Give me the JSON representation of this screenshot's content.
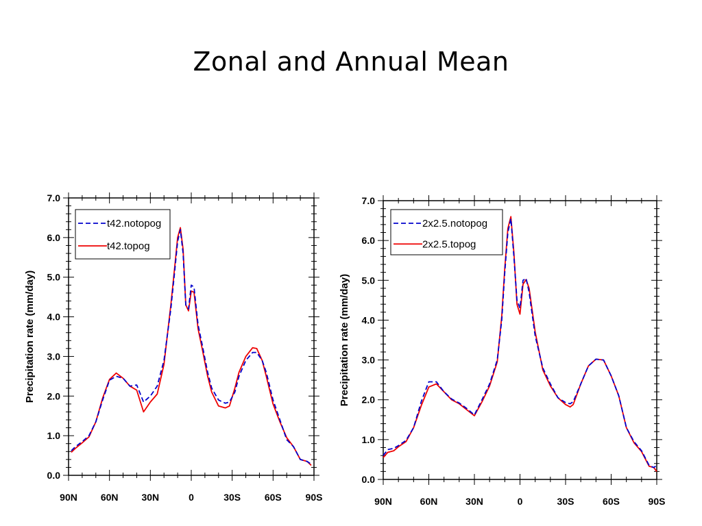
{
  "slide": {
    "title": "Zonal and Annual Mean"
  },
  "chart_data": [
    {
      "type": "line",
      "xlabel": "",
      "ylabel": "Precipitation rate (mm/day)",
      "xlim": [
        90,
        -90
      ],
      "ylim": [
        0,
        7
      ],
      "x_ticks": [
        {
          "value": 90,
          "label": "90N"
        },
        {
          "value": 60,
          "label": "60N"
        },
        {
          "value": 30,
          "label": "30N"
        },
        {
          "value": 0,
          "label": "0"
        },
        {
          "value": -30,
          "label": "30S"
        },
        {
          "value": -60,
          "label": "60S"
        },
        {
          "value": -90,
          "label": "90S"
        }
      ],
      "y_ticks": [
        "0.0",
        "1.0",
        "2.0",
        "3.0",
        "4.0",
        "5.0",
        "6.0",
        "7.0"
      ],
      "legend_position": "top-left",
      "series": [
        {
          "name": "t42.notopog",
          "color": "#0000cc",
          "dash": "dashed",
          "x": [
            88,
            85,
            80,
            75,
            70,
            65,
            60,
            55,
            50,
            45,
            40,
            35,
            30,
            25,
            20,
            15,
            12,
            10,
            8,
            6,
            4,
            2,
            0,
            -2,
            -5,
            -8,
            -12,
            -15,
            -20,
            -25,
            -28,
            -32,
            -35,
            -40,
            -45,
            -48,
            -52,
            -55,
            -60,
            -65,
            -70,
            -75,
            -80,
            -85,
            -88
          ],
          "y": [
            0.62,
            0.72,
            0.85,
            1.0,
            1.35,
            1.9,
            2.4,
            2.5,
            2.45,
            2.25,
            2.28,
            1.85,
            2.0,
            2.25,
            2.9,
            4.2,
            5.2,
            5.9,
            6.2,
            5.6,
            4.3,
            4.2,
            4.8,
            4.75,
            3.8,
            3.3,
            2.6,
            2.2,
            1.9,
            1.82,
            1.85,
            2.1,
            2.5,
            2.9,
            3.1,
            3.1,
            2.9,
            2.6,
            1.9,
            1.4,
            0.9,
            0.72,
            0.4,
            0.35,
            0.28
          ]
        },
        {
          "name": "t42.topog",
          "color": "#ee0000",
          "dash": "solid",
          "x": [
            88,
            85,
            80,
            75,
            70,
            65,
            60,
            55,
            50,
            45,
            40,
            35,
            30,
            25,
            20,
            15,
            12,
            10,
            8,
            6,
            4,
            2,
            0,
            -2,
            -5,
            -8,
            -12,
            -15,
            -20,
            -25,
            -28,
            -32,
            -35,
            -40,
            -45,
            -48,
            -52,
            -55,
            -60,
            -65,
            -70,
            -75,
            -80,
            -85,
            -88
          ],
          "y": [
            0.58,
            0.68,
            0.82,
            0.97,
            1.35,
            1.95,
            2.42,
            2.58,
            2.45,
            2.25,
            2.15,
            1.6,
            1.85,
            2.05,
            2.8,
            4.3,
            5.3,
            6.0,
            6.25,
            5.7,
            4.3,
            4.15,
            4.65,
            4.62,
            3.7,
            3.2,
            2.5,
            2.1,
            1.75,
            1.7,
            1.75,
            2.2,
            2.6,
            3.0,
            3.22,
            3.2,
            2.9,
            2.5,
            1.8,
            1.35,
            0.95,
            0.72,
            0.4,
            0.35,
            0.25
          ]
        }
      ]
    },
    {
      "type": "line",
      "xlabel": "",
      "ylabel": "Precipitation rate (mm/day)",
      "xlim": [
        90,
        -90
      ],
      "ylim": [
        0,
        7
      ],
      "x_ticks": [
        {
          "value": 90,
          "label": "90N"
        },
        {
          "value": 60,
          "label": "60N"
        },
        {
          "value": 30,
          "label": "30N"
        },
        {
          "value": 0,
          "label": "0"
        },
        {
          "value": -30,
          "label": "30S"
        },
        {
          "value": -60,
          "label": "60S"
        },
        {
          "value": -90,
          "label": "90S"
        }
      ],
      "y_ticks": [
        "0.0",
        "1.0",
        "2.0",
        "3.0",
        "4.0",
        "5.0",
        "6.0",
        "7.0"
      ],
      "legend_position": "top-left",
      "series": [
        {
          "name": "2x2.5.notopog",
          "color": "#0000cc",
          "dash": "dashed",
          "x": [
            90,
            87,
            83,
            80,
            75,
            70,
            65,
            60,
            55,
            50,
            45,
            40,
            35,
            30,
            25,
            20,
            15,
            12,
            10,
            8,
            6,
            4,
            2,
            0,
            -2,
            -4,
            -6,
            -10,
            -15,
            -20,
            -25,
            -30,
            -33,
            -35,
            -40,
            -45,
            -50,
            -55,
            -60,
            -65,
            -70,
            -75,
            -80,
            -85,
            -88,
            -90
          ],
          "y": [
            0.6,
            0.75,
            0.78,
            0.85,
            0.98,
            1.3,
            1.95,
            2.45,
            2.45,
            2.2,
            2.02,
            1.92,
            1.78,
            1.62,
            2.0,
            2.4,
            3.0,
            4.0,
            5.2,
            6.2,
            6.55,
            5.6,
            4.5,
            4.3,
            5.0,
            5.05,
            4.7,
            3.6,
            2.8,
            2.4,
            2.05,
            1.93,
            1.9,
            1.95,
            2.4,
            2.85,
            3.02,
            3.0,
            2.6,
            2.1,
            1.3,
            0.95,
            0.72,
            0.35,
            0.3,
            0.35
          ]
        },
        {
          "name": "2x2.5.topog",
          "color": "#ee0000",
          "dash": "solid",
          "x": [
            90,
            87,
            83,
            80,
            75,
            70,
            65,
            60,
            55,
            50,
            45,
            40,
            35,
            30,
            25,
            20,
            15,
            12,
            10,
            8,
            6,
            4,
            2,
            0,
            -2,
            -4,
            -6,
            -10,
            -15,
            -20,
            -25,
            -30,
            -33,
            -35,
            -40,
            -45,
            -50,
            -55,
            -60,
            -65,
            -70,
            -75,
            -80,
            -85,
            -88,
            -90
          ],
          "y": [
            0.55,
            0.68,
            0.72,
            0.82,
            0.95,
            1.3,
            1.85,
            2.32,
            2.4,
            2.2,
            2.0,
            1.9,
            1.75,
            1.6,
            1.95,
            2.35,
            2.95,
            4.1,
            5.3,
            6.3,
            6.6,
            5.7,
            4.4,
            4.15,
            4.9,
            5.02,
            4.8,
            3.7,
            2.75,
            2.35,
            2.05,
            1.88,
            1.82,
            1.88,
            2.4,
            2.85,
            3.02,
            3.0,
            2.6,
            2.1,
            1.3,
            0.92,
            0.7,
            0.33,
            0.3,
            0.2
          ]
        }
      ]
    }
  ]
}
